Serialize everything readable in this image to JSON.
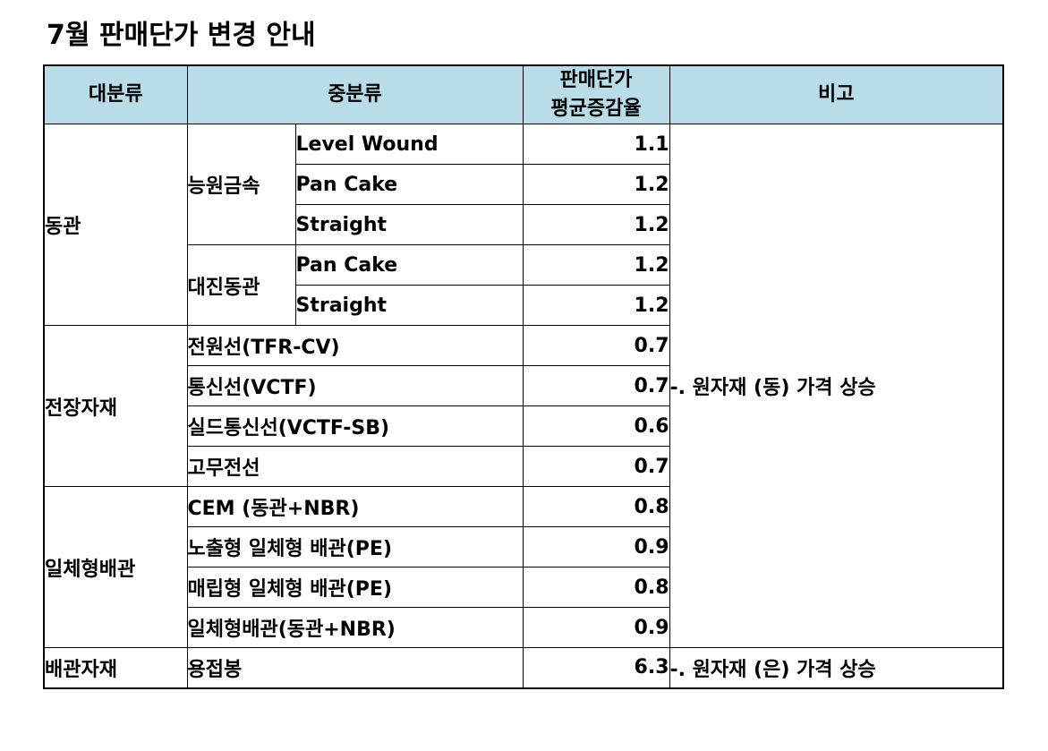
{
  "title": "7월 판매단가 변경 안내",
  "header": {
    "col1": "대분류",
    "col2": "중분류",
    "col3_line1": "판매단가",
    "col3_line2": "평균증감율",
    "col4": "비고"
  },
  "groups": {
    "dongwan": {
      "label": "동관",
      "sub1": {
        "label": "능원금속",
        "rows": [
          {
            "item": "Level Wound",
            "value": "1.1"
          },
          {
            "item": "Pan Cake",
            "value": "1.2"
          },
          {
            "item": "Straight",
            "value": "1.2"
          }
        ]
      },
      "sub2": {
        "label": "대진동관",
        "rows": [
          {
            "item": "Pan Cake",
            "value": "1.2"
          },
          {
            "item": "Straight",
            "value": "1.2"
          }
        ]
      }
    },
    "electric": {
      "label": "전장자재",
      "rows": [
        {
          "item": "전원선(TFR-CV)",
          "value": "0.7"
        },
        {
          "item": "통신선(VCTF)",
          "value": "0.7"
        },
        {
          "item": "실드통신선(VCTF-SB)",
          "value": "0.6"
        },
        {
          "item": "고무전선",
          "value": "0.7"
        }
      ]
    },
    "integrated": {
      "label": "일체형배관",
      "rows": [
        {
          "item": "CEM (동관+NBR)",
          "value": "0.8"
        },
        {
          "item": "노출형 일체형 배관(PE)",
          "value": "0.9"
        },
        {
          "item": "매립형 일체형 배관(PE)",
          "value": "0.8"
        },
        {
          "item": "일체형배관(동관+NBR)",
          "value": "0.9"
        }
      ]
    },
    "piping": {
      "label": "배관자재",
      "rows": [
        {
          "item": "용접봉",
          "value": "6.3"
        }
      ]
    }
  },
  "notes": {
    "copper": "-. 원자재 (동) 가격 상승",
    "silver": "-. 원자재 (은) 가격 상승"
  }
}
